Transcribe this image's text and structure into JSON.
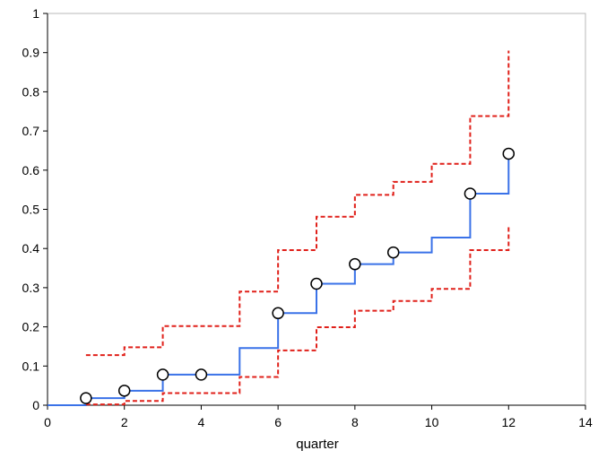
{
  "chart_data": {
    "type": "line",
    "title": "",
    "xlabel": "quarter",
    "ylabel": "",
    "xlim": [
      0,
      14
    ],
    "ylim": [
      0,
      1
    ],
    "xticks": [
      0,
      2,
      4,
      6,
      8,
      10,
      12,
      14
    ],
    "yticks": [
      0,
      0.1,
      0.2,
      0.3,
      0.4,
      0.5,
      0.6,
      0.7,
      0.8,
      0.9,
      1
    ],
    "grid": false,
    "legend": "none",
    "series": [
      {
        "style": "step",
        "color": "#3a72e8",
        "dash": "solid",
        "x": [
          0,
          1,
          2,
          3,
          4,
          5,
          6,
          7,
          8,
          9,
          10,
          11,
          12
        ],
        "y": [
          0,
          0.018,
          0.037,
          0.078,
          0.078,
          0.146,
          0.235,
          0.31,
          0.36,
          0.39,
          0.428,
          0.54,
          0.642
        ]
      },
      {
        "style": "step",
        "color": "#e0201a",
        "dash": "dashed",
        "x": [
          1,
          2,
          3,
          4,
          5,
          6,
          7,
          8,
          9,
          10,
          11,
          12
        ],
        "y": [
          0.128,
          0.148,
          0.202,
          0.202,
          0.29,
          0.396,
          0.481,
          0.537,
          0.57,
          0.616,
          0.738,
          0.905
        ]
      },
      {
        "style": "step",
        "color": "#e0201a",
        "dash": "dashed",
        "x": [
          1,
          2,
          3,
          4,
          5,
          6,
          7,
          8,
          9,
          10,
          11,
          12
        ],
        "y": [
          0.002,
          0.011,
          0.031,
          0.031,
          0.072,
          0.14,
          0.199,
          0.241,
          0.266,
          0.297,
          0.396,
          0.46
        ]
      },
      {
        "style": "scatter",
        "marker": "open-circle",
        "x": [
          1,
          2,
          3,
          4,
          6,
          7,
          8,
          9,
          11,
          12
        ],
        "y": [
          0.018,
          0.037,
          0.078,
          0.078,
          0.235,
          0.31,
          0.36,
          0.39,
          0.54,
          0.642
        ]
      }
    ]
  }
}
